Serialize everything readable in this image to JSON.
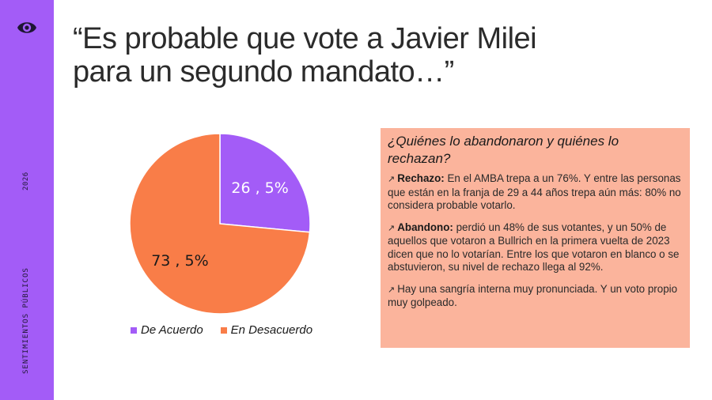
{
  "sidebar": {
    "logo_icon": "eye-icon",
    "year": "2026",
    "brand": "SENTIMIENTOS PÚBLICOS",
    "color": "#a35cf7"
  },
  "title": {
    "line1": "“Es probable que vote a Javier Milei",
    "line2": "para un segundo mandato…”"
  },
  "chart_data": {
    "type": "pie",
    "title": "",
    "categories": [
      "De Acuerdo",
      "En Desacuerdo"
    ],
    "values": [
      26.5,
      73.5
    ],
    "data_labels": [
      "26 , 5%",
      "73 , 5%"
    ],
    "colors": [
      "#a35cf7",
      "#f97d48"
    ],
    "legend_position": "bottom"
  },
  "panel": {
    "title": "¿Quiénes lo abandonaron y quiénes lo rechazan?",
    "arrow_icon": "↗",
    "items": [
      {
        "label": "Rechazo:",
        "text": " En el AMBA trepa a un 76%. Y entre las personas que están en la franja de 29 a 44 años trepa aún más: 80% no considera probable votarlo."
      },
      {
        "label": "Abandono:",
        "text": " perdió un 48% de sus votantes, y un 50% de aquellos que votaron a Bullrich en la primera vuelta de 2023 dicen que no lo votarían. Entre los que votaron en blanco o se abstuvieron, su nivel de rechazo llega al 92%."
      },
      {
        "label": "",
        "text": "Hay una sangría interna muy pronunciada. Y un voto propio muy golpeado."
      }
    ],
    "background": "#fbb49c"
  }
}
